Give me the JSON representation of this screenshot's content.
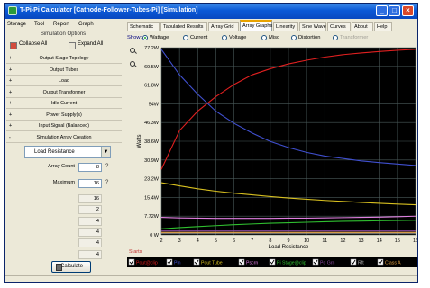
{
  "window": {
    "title": "T-Pi-Pi Calculator [Cathode-Follower-Tubes-Pi] [Simulation]"
  },
  "menu": [
    "Storage",
    "Tool",
    "Report",
    "Graph"
  ],
  "left_panel": {
    "title": "Simulation Options",
    "collapse_label": "Collapse All",
    "expand_label": "Expand All",
    "sections": [
      {
        "sign": "+",
        "label": "Output Stage Topology"
      },
      {
        "sign": "+",
        "label": "Output Tubes"
      },
      {
        "sign": "+",
        "label": "Load"
      },
      {
        "sign": "+",
        "label": "Output Transformer"
      },
      {
        "sign": "+",
        "label": "Idle Current"
      },
      {
        "sign": "+",
        "label": "Power Supply(s)"
      },
      {
        "sign": "+",
        "label": "Input Signal (Balanced)"
      },
      {
        "sign": "-",
        "label": "Simulation Array Creation"
      }
    ],
    "array_variable": "Load Resistance",
    "array_count_label": "Array Count",
    "array_count_value": "8",
    "maximum_label": "Maximum",
    "maximum_value": "16",
    "disabled_values": [
      "16",
      "2",
      "4",
      "4",
      "4",
      "4"
    ],
    "calculate_label": "Calculate"
  },
  "tabs": [
    "Schematic",
    "Tabulated Results",
    "Array Grid",
    "Array Graphs",
    "Linearity",
    "Sine Wave",
    "Curves",
    "About",
    "Help"
  ],
  "active_tab": "Array Graphs",
  "show": {
    "label": "Show:",
    "options": [
      {
        "label": "Wattage",
        "selected": true,
        "disabled": false
      },
      {
        "label": "Current",
        "selected": false,
        "disabled": false
      },
      {
        "label": "Voltage",
        "selected": false,
        "disabled": false
      },
      {
        "label": "Misc",
        "selected": false,
        "disabled": false
      },
      {
        "label": "Distortion",
        "selected": false,
        "disabled": false
      },
      {
        "label": "Transformer",
        "selected": false,
        "disabled": true
      }
    ]
  },
  "chart_data": {
    "type": "line",
    "xlabel": "Load Resistance",
    "ylabel": "Watts",
    "x": [
      2,
      3,
      4,
      5,
      6,
      7,
      8,
      9,
      10,
      11,
      12,
      13,
      14,
      15,
      16
    ],
    "xlim": [
      2,
      16
    ],
    "ylim": [
      0,
      77.2
    ],
    "yticks": [
      "0 W",
      "7.72W",
      "15.4W",
      "23.2W",
      "30.9W",
      "38.6W",
      "46.3W",
      "54W",
      "61.8W",
      "69.5W",
      "77.2W"
    ],
    "grid": true,
    "background": "#000000",
    "footer_label": "Starts",
    "series": [
      {
        "legend": "Pout@clip",
        "color": "#e02020",
        "values": [
          27,
          43,
          51,
          57,
          62,
          66,
          68.5,
          70.5,
          72,
          73.3,
          74.3,
          75,
          75.6,
          76.1,
          76.5
        ]
      },
      {
        "legend": "Pin",
        "color": "#4050d0",
        "values": [
          76.5,
          66,
          58,
          51,
          46,
          42,
          38.5,
          36,
          34,
          32.5,
          31.5,
          30.5,
          29.8,
          29.2,
          28.6
        ]
      },
      {
        "legend": "Pout Tube",
        "color": "#d8c020",
        "values": [
          21.5,
          20.2,
          19,
          18,
          17.2,
          16.5,
          15.8,
          15.2,
          14.7,
          14.2,
          13.8,
          13.4,
          13,
          12.7,
          12.4
        ]
      },
      {
        "legend": "Pscrn",
        "color": "#e07fe0",
        "values": [
          7.2,
          7.0,
          6.9,
          6.8,
          6.8,
          6.8,
          6.8,
          6.9,
          6.9,
          7.0,
          7.1,
          7.2,
          7.3,
          7.5,
          7.7
        ]
      },
      {
        "legend": "Pi Stage@clip",
        "color": "#30c030",
        "values": [
          2.5,
          3.0,
          3.4,
          3.8,
          4.2,
          4.5,
          4.8,
          5.0,
          5.2,
          5.4,
          5.6,
          5.7,
          5.8,
          5.9,
          6.0
        ]
      },
      {
        "legend": "Pd Grn",
        "color": "#8a4aa0",
        "values": [
          1.6,
          1.6,
          1.6,
          1.6,
          1.6,
          1.6,
          1.6,
          1.6,
          1.6,
          1.6,
          1.6,
          1.6,
          1.6,
          1.6,
          1.6
        ]
      },
      {
        "legend": "Rft",
        "color": "#b0b0b0",
        "values": [
          0.7,
          0.7,
          0.7,
          0.7,
          0.7,
          0.7,
          0.7,
          0.7,
          0.7,
          0.7,
          0.7,
          0.7,
          0.7,
          0.7,
          0.7
        ]
      },
      {
        "legend": "Class A",
        "color": "#e0a040",
        "values": [
          1.0,
          1.0,
          1.0,
          1.0,
          1.0,
          1.0,
          1.0,
          1.0,
          1.0,
          1.0,
          1.0,
          1.0,
          1.0,
          1.0,
          1.0
        ]
      }
    ]
  }
}
